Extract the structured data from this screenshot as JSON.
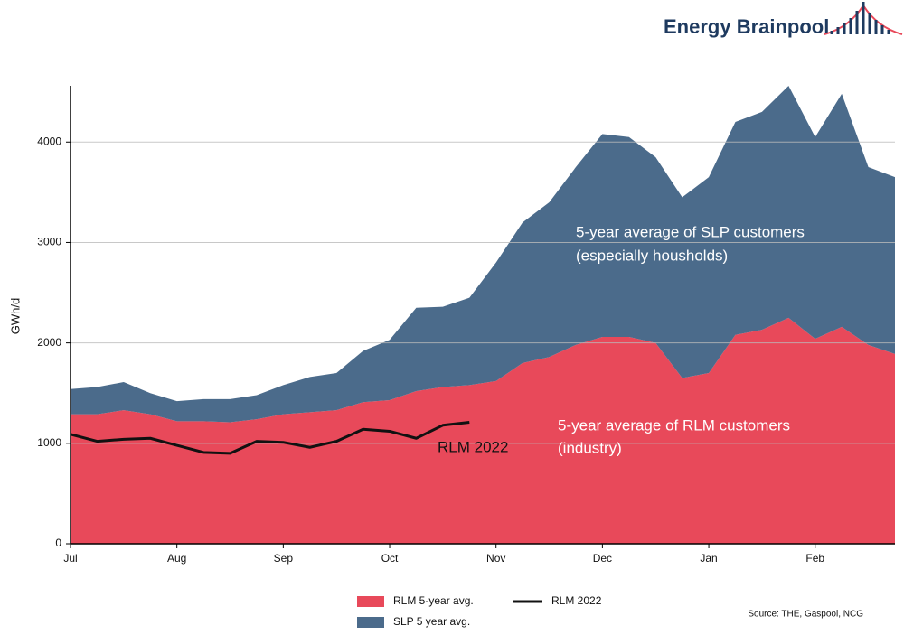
{
  "chart_data": {
    "type": "stacked_area",
    "brand": "Energy Brainpool",
    "ylabel": "GWh/d",
    "source": "Source: THE, Gaspool, NCG",
    "annotations": [
      "5-year average of SLP customers",
      "(especially housholds)",
      "5-year average of RLM customers",
      "(industry)",
      "RLM 2022"
    ],
    "categories": [
      "Jul",
      null,
      null,
      null,
      "Aug",
      null,
      null,
      null,
      "Sep",
      null,
      null,
      null,
      "Oct",
      null,
      null,
      null,
      "Nov",
      null,
      null,
      null,
      "Dec",
      null,
      null,
      null,
      "Jan",
      null,
      null,
      null,
      "Feb",
      null,
      null,
      null
    ],
    "series": [
      {
        "name": "RLM 5-year avg.",
        "color": "#e8495a",
        "values": [
          1290,
          1290,
          1330,
          1290,
          1220,
          1220,
          1210,
          1240,
          1290,
          1310,
          1330,
          1410,
          1430,
          1520,
          1560,
          1580,
          1620,
          1800,
          1860,
          1980,
          2060,
          2060,
          2000,
          1650,
          1700,
          2080,
          2130,
          2250,
          2040,
          2160,
          1980,
          1890
        ]
      },
      {
        "name": "SLP 5 year avg.",
        "color": "#4b6b8b",
        "values": [
          250,
          270,
          280,
          210,
          200,
          220,
          230,
          240,
          290,
          350,
          370,
          510,
          600,
          830,
          800,
          870,
          1180,
          1400,
          1540,
          1770,
          2020,
          1990,
          1850,
          1800,
          1950,
          2120,
          2170,
          2310,
          2010,
          2320,
          1770,
          1760
        ]
      },
      {
        "name": "RLM 2022",
        "color": "#111111",
        "line": true,
        "values": [
          1090,
          1020,
          1040,
          1050,
          980,
          910,
          900,
          1020,
          1010,
          960,
          1020,
          1140,
          1120,
          1050,
          1180,
          1210,
          null,
          null,
          null,
          null,
          null,
          null,
          null,
          null,
          null,
          null,
          null,
          null,
          null,
          null,
          null,
          null
        ]
      }
    ],
    "ylim": [
      0,
      4560
    ],
    "yticks": [
      0,
      1000,
      2000,
      3000,
      4000
    ],
    "grid": true
  }
}
